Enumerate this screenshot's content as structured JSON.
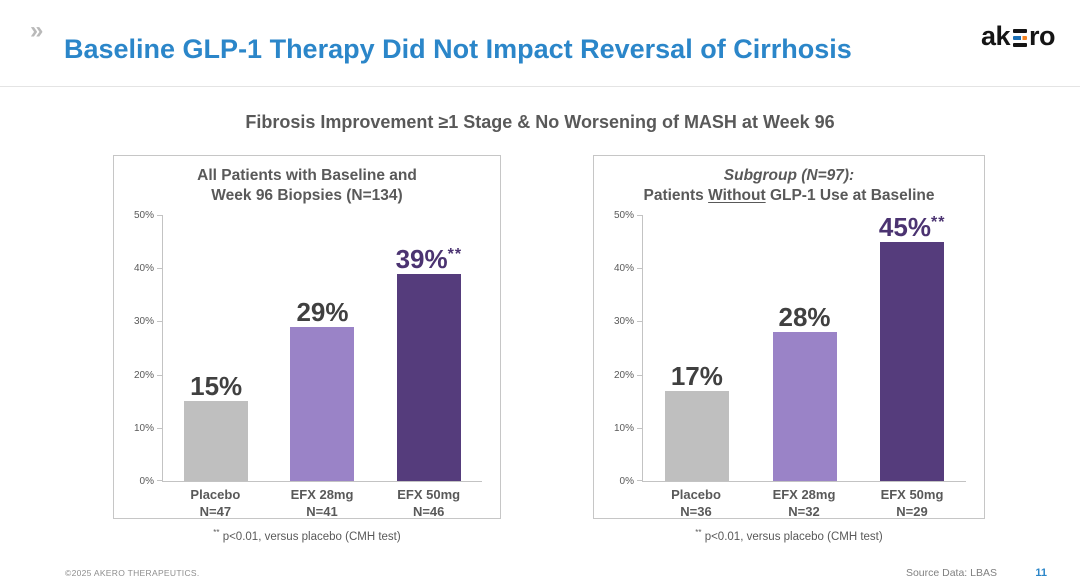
{
  "header": {
    "chevron": "»",
    "title_bold": "Baseline GLP-1 Therapy",
    "title_rest": " Did Not Impact Reversal of Cirrhosis",
    "logo_text": "akero",
    "logo_pre": "ak",
    "logo_post": "ro"
  },
  "subtitle": "Fibrosis Improvement ≥1 Stage & No Worsening of MASH at Week 96",
  "chart_data": [
    {
      "type": "bar",
      "title_line1": "All Patients with Baseline and",
      "title_line2_pre": "Week 96 Biopsies (N=134)",
      "title_line2_underline": "",
      "title_line2_post": "",
      "categories": [
        "Placebo",
        "EFX 28mg",
        "EFX 50mg"
      ],
      "n_labels": [
        "N=47",
        "N=41",
        "N=46"
      ],
      "values": [
        15,
        29,
        39
      ],
      "value_labels": [
        "15%",
        "29%",
        "39%"
      ],
      "superscripts": [
        "",
        "",
        "**"
      ],
      "bar_colors": [
        "#BFBFBF",
        "#9A83C7",
        "#553C7C"
      ],
      "ylim": [
        0,
        50
      ],
      "ytick_values": [
        0,
        10,
        20,
        30,
        40,
        50
      ],
      "ytick_labels": [
        "0%",
        "10%",
        "20%",
        "30%",
        "40%",
        "50%"
      ],
      "grid": false,
      "footnote_sup": "**",
      "footnote": " p<0.01, versus placebo (CMH test)"
    },
    {
      "type": "bar",
      "title_line1": "Subgroup (N=97):",
      "title_line2_pre": "Patients ",
      "title_line2_underline": "Without",
      "title_line2_post": " GLP-1 Use at Baseline",
      "categories": [
        "Placebo",
        "EFX 28mg",
        "EFX 50mg"
      ],
      "n_labels": [
        "N=36",
        "N=32",
        "N=29"
      ],
      "values": [
        17,
        28,
        45
      ],
      "value_labels": [
        "17%",
        "28%",
        "45%"
      ],
      "superscripts": [
        "",
        "",
        "**"
      ],
      "bar_colors": [
        "#BFBFBF",
        "#9A83C7",
        "#553C7C"
      ],
      "ylim": [
        0,
        50
      ],
      "ytick_values": [
        0,
        10,
        20,
        30,
        40,
        50
      ],
      "ytick_labels": [
        "0%",
        "10%",
        "20%",
        "30%",
        "40%",
        "50%"
      ],
      "grid": false,
      "footnote_sup": "**",
      "footnote": " p<0.01, versus placebo (CMH test)"
    }
  ],
  "colors": {
    "title_blue": "#2B86C9",
    "bar_gray": "#BFBFBF",
    "bar_light_purple": "#9A83C7",
    "bar_dark_purple": "#553C7C",
    "value_label_gray": "#404040",
    "sig_label_purple": "#4B3371",
    "logo_blue": "#1B6FB5",
    "logo_orange": "#F58220"
  },
  "footer": {
    "copyright": "©2025 AKERO THERAPEUTICS.",
    "source": "Source Data: LBAS",
    "page_number": "11"
  }
}
